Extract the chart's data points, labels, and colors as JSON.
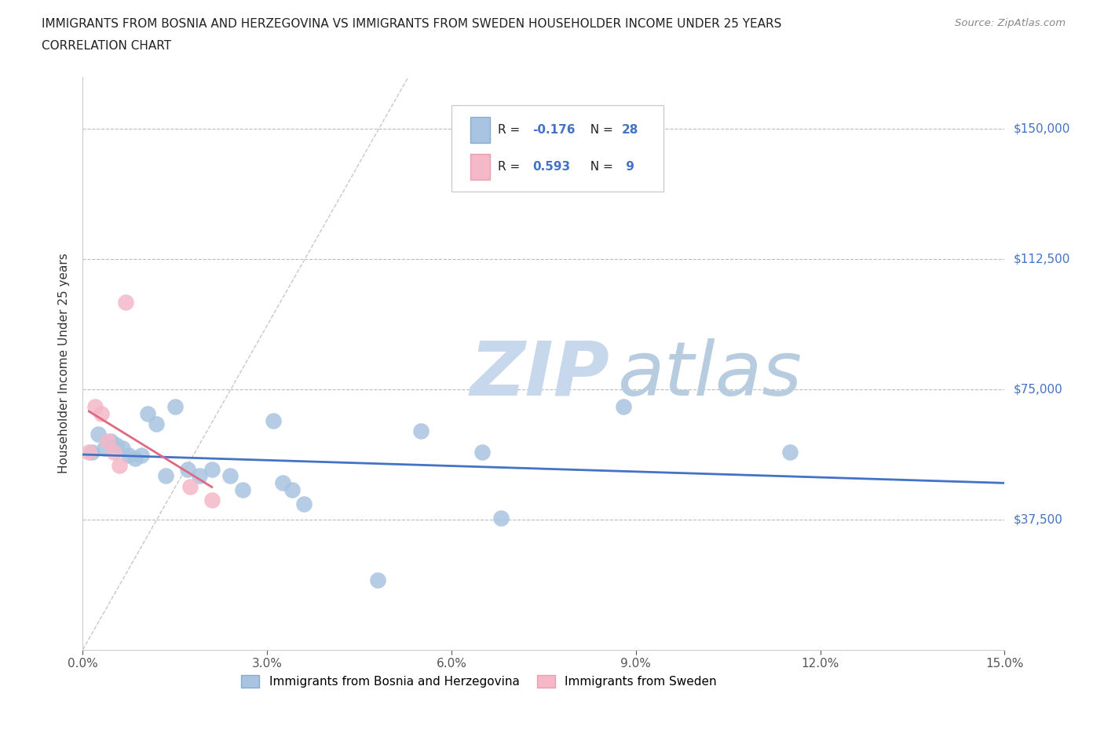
{
  "title_line1": "IMMIGRANTS FROM BOSNIA AND HERZEGOVINA VS IMMIGRANTS FROM SWEDEN HOUSEHOLDER INCOME UNDER 25 YEARS",
  "title_line2": "CORRELATION CHART",
  "source": "Source: ZipAtlas.com",
  "xlabel_ticks": [
    "0.0%",
    "3.0%",
    "6.0%",
    "9.0%",
    "12.0%",
    "15.0%"
  ],
  "xlabel_vals": [
    0.0,
    3.0,
    6.0,
    9.0,
    12.0,
    15.0
  ],
  "ylabel": "Householder Income Under 25 years",
  "ylabel_ticks": [
    "$37,500",
    "$75,000",
    "$112,500",
    "$150,000"
  ],
  "ylabel_vals": [
    37500,
    75000,
    112500,
    150000
  ],
  "xmin": 0.0,
  "xmax": 15.0,
  "ymin": 0,
  "ymax": 165000,
  "bosnia_x": [
    0.15,
    0.25,
    0.35,
    0.45,
    0.55,
    0.65,
    0.75,
    0.85,
    0.95,
    1.05,
    1.2,
    1.35,
    1.5,
    1.7,
    1.9,
    2.1,
    2.4,
    2.6,
    3.1,
    3.25,
    3.4,
    3.6,
    5.5,
    6.5,
    6.8,
    8.8,
    11.5,
    4.8
  ],
  "bosnia_y": [
    57000,
    62000,
    58000,
    60000,
    59000,
    58000,
    56000,
    55000,
    56000,
    68000,
    65000,
    50000,
    70000,
    52000,
    50000,
    52000,
    50000,
    46000,
    66000,
    48000,
    46000,
    42000,
    63000,
    57000,
    38000,
    70000,
    57000,
    20000
  ],
  "sweden_x": [
    0.1,
    0.2,
    0.3,
    0.4,
    0.5,
    0.6,
    0.7,
    1.75,
    2.1
  ],
  "sweden_y": [
    57000,
    70000,
    68000,
    60000,
    57000,
    53000,
    100000,
    47000,
    43000
  ],
  "bosnia_R": -0.176,
  "bosnia_N": 28,
  "sweden_R": 0.593,
  "sweden_N": 9,
  "bosnia_color": "#a8c4e0",
  "sweden_color": "#f4b8c8",
  "bosnia_line_color": "#4472c4",
  "sweden_line_color": "#e06880",
  "diag_line_color": "#c8c8c8",
  "legend_R_color": "#4472c4",
  "watermark_zip": "ZIP",
  "watermark_atlas": "atlas",
  "watermark_color_zip": "#c8d8ec",
  "watermark_color_atlas": "#b8cce0",
  "background_color": "#ffffff",
  "grid_color": "#bbbbbb"
}
